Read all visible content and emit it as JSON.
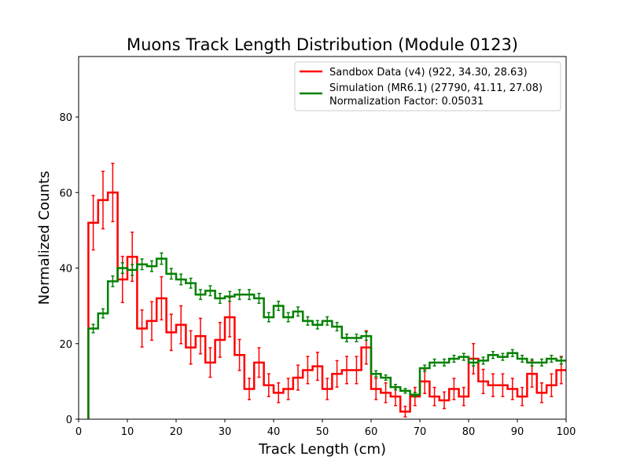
{
  "chart_data": {
    "type": "line",
    "title": "Muons Track Length Distribution (Module 0123)",
    "xlabel": "Track Length (cm)",
    "ylabel": "Normalized Counts",
    "xlim": [
      0,
      100
    ],
    "ylim": [
      0,
      96
    ],
    "xticks": [
      0,
      10,
      20,
      30,
      40,
      50,
      60,
      70,
      80,
      90,
      100
    ],
    "yticks": [
      0,
      20,
      40,
      60,
      80
    ],
    "grid": false,
    "legend_position": "top-right",
    "bins": {
      "start": 2,
      "width": 2,
      "count": 49
    },
    "series": [
      {
        "name": "Sandbox Data (v4) (922, 34.30, 28.63)",
        "color": "#ff0000",
        "values": [
          52,
          58,
          60,
          37,
          43,
          24,
          26,
          32,
          23,
          25,
          19,
          22,
          15,
          21,
          27,
          17,
          8,
          15,
          9,
          7,
          8,
          11,
          13,
          14,
          8,
          12,
          13,
          13,
          19,
          8,
          7,
          6,
          2,
          6,
          10,
          6,
          5,
          8,
          6,
          16,
          10,
          9,
          9,
          8,
          6,
          12,
          7,
          9,
          13
        ],
        "errors": [
          7.2,
          7.6,
          7.7,
          6.1,
          6.5,
          4.9,
          5.1,
          5.7,
          4.8,
          5.0,
          4.4,
          4.7,
          3.9,
          4.6,
          5.2,
          4.1,
          2.8,
          3.9,
          3.0,
          2.6,
          2.8,
          3.3,
          3.6,
          3.7,
          2.8,
          3.5,
          3.6,
          3.6,
          4.4,
          2.8,
          2.6,
          2.4,
          1.4,
          2.4,
          3.2,
          2.4,
          2.2,
          2.8,
          2.4,
          4.0,
          3.2,
          3.0,
          3.0,
          2.8,
          2.4,
          3.5,
          2.6,
          3.0,
          3.6
        ]
      },
      {
        "name": "Simulation (MR6.1) (27790, 41.11, 27.08)",
        "subtitle": "Normalization Factor: 0.05031",
        "color": "#008000",
        "values": [
          24,
          28,
          36.5,
          40,
          39.5,
          41,
          40.5,
          42.5,
          38.5,
          37,
          36,
          33,
          34,
          32,
          32.5,
          33,
          33,
          32,
          27,
          30,
          27,
          28.5,
          26,
          25,
          26,
          24.5,
          21.5,
          21.5,
          22,
          12,
          11,
          8.5,
          7.5,
          6.5,
          13.5,
          15,
          15,
          16,
          16.5,
          15,
          15.5,
          17,
          16.5,
          17.5,
          16,
          15,
          15,
          16,
          15.5
        ],
        "errors": [
          1.1,
          1.2,
          1.4,
          1.4,
          1.4,
          1.4,
          1.4,
          1.5,
          1.4,
          1.4,
          1.3,
          1.3,
          1.3,
          1.3,
          1.3,
          1.3,
          1.3,
          1.3,
          1.2,
          1.2,
          1.2,
          1.2,
          1.1,
          1.1,
          1.1,
          1.1,
          1.0,
          1.0,
          1.1,
          0.8,
          0.7,
          0.7,
          0.6,
          0.6,
          0.8,
          0.9,
          0.9,
          0.9,
          0.9,
          0.9,
          0.9,
          0.9,
          0.9,
          0.9,
          0.9,
          0.9,
          0.9,
          0.9,
          0.9
        ]
      }
    ]
  }
}
